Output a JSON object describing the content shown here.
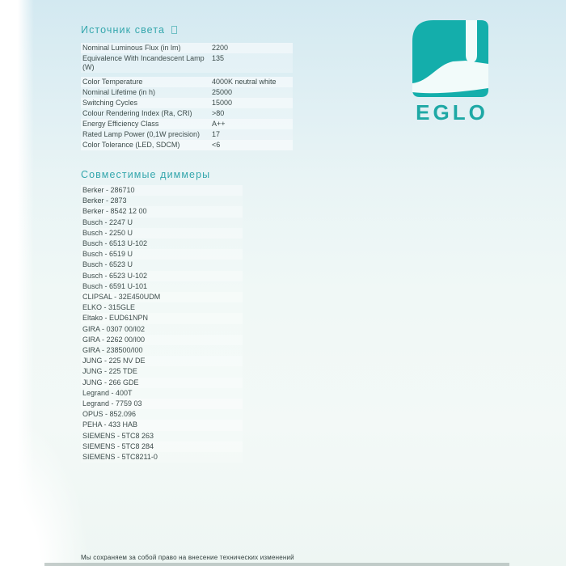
{
  "document": {
    "light_source_section": {
      "title": "Источник света",
      "title_glyph": "missing-glyph-box",
      "specs": [
        {
          "label": "Nominal Luminous Flux (in lm)",
          "value": "2200"
        },
        {
          "label": "Equivalence With Incandescent Lamp (W)",
          "value": "135"
        },
        {
          "label": "Color Temperature",
          "value": "4000K neutral white"
        },
        {
          "label": "Nominal Lifetime (in h)",
          "value": "25000"
        },
        {
          "label": "Switching Cycles",
          "value": "15000"
        },
        {
          "label": "Colour Rendering Index (Ra, CRI)",
          "value": ">80"
        },
        {
          "label": "Energy Efficiency Class",
          "value": "A++"
        },
        {
          "label": "Rated Lamp Power (0,1W precision)",
          "value": "17"
        },
        {
          "label": "Color Tolerance (LED, SDCM)",
          "value": "<6"
        }
      ]
    },
    "dimmers_section": {
      "title": "Совместимые диммеры",
      "items": [
        "Berker - 286710",
        "Berker - 2873",
        "Berker - 8542 12 00",
        "Busch - 2247 U",
        "Busch - 2250 U",
        "Busch - 6513 U-102",
        "Busch - 6519 U",
        "Busch - 6523 U",
        "Busch - 6523 U-102",
        "Busch - 6591 U-101",
        "CLIPSAL - 32E450UDM",
        "ELKO - 315GLE",
        "Eltako - EUD61NPN",
        "GIRA - 0307 00/I02",
        "GIRA - 2262 00/I00",
        "GIRA - 238500/I00",
        "JUNG - 225 NV DE",
        "JUNG - 225 TDE",
        "JUNG - 266 GDE",
        "Legrand - 400T",
        "Legrand - 7759 03",
        "OPUS - 852.096",
        "PEHA - 433 HAB",
        "SIEMENS - 5TC8 263",
        "SIEMENS - 5TC8 284",
        "SIEMENS - 5TC8211-0"
      ]
    },
    "brand": {
      "logo_text": "EGLO",
      "logo_icon": "pendant-lamp"
    },
    "footer": {
      "note": "Мы сохраняем за собой право на внесение технических изменений"
    },
    "colors": {
      "accent_teal": "#35a7ad",
      "logo_teal": "#14aeab",
      "body_text": "#3e4d4c"
    }
  }
}
